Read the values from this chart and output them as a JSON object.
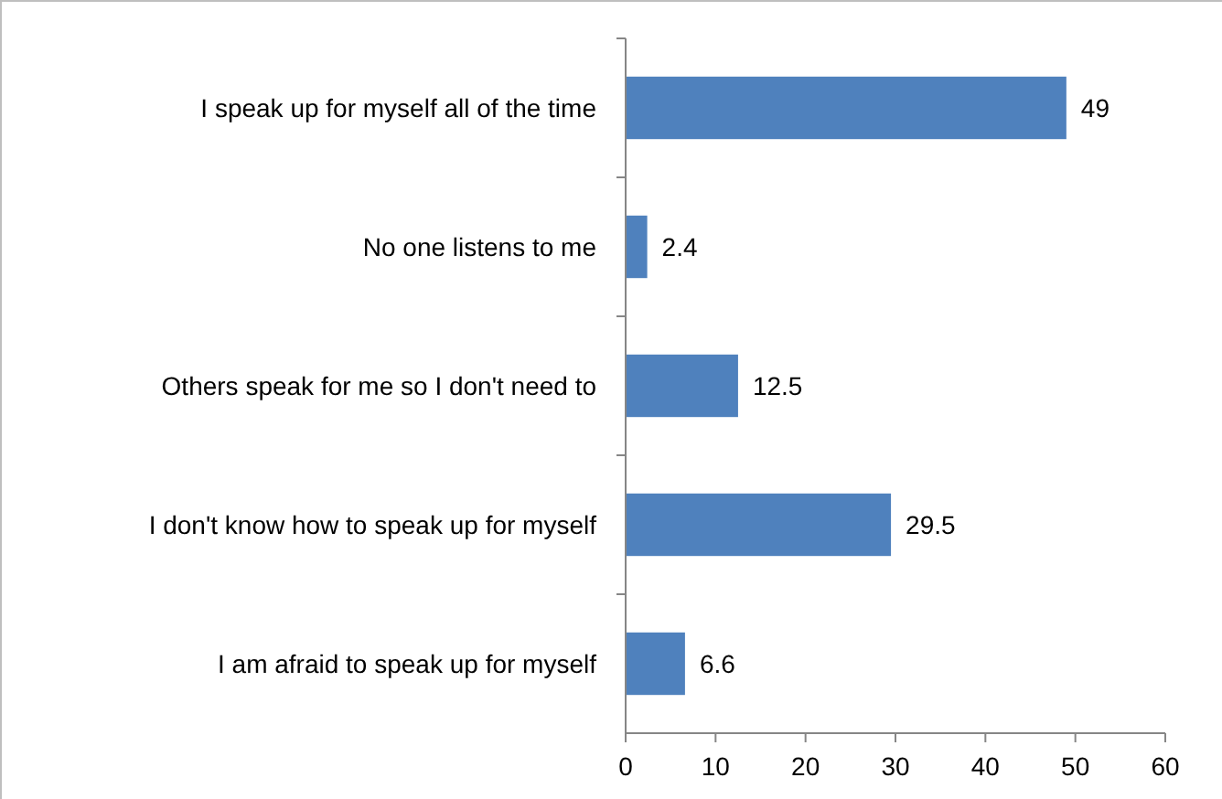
{
  "chart_data": {
    "type": "bar",
    "orientation": "horizontal",
    "categories": [
      "I speak up for myself all of the time",
      "No one listens to me",
      "Others speak for me so I don't need to",
      "I don't know how to speak up for myself",
      "I am afraid to speak up for myself"
    ],
    "values": [
      49,
      2.4,
      12.5,
      29.5,
      6.6
    ],
    "color": "#4f81bd",
    "xlim": [
      0,
      60
    ],
    "xticks": [
      0,
      10,
      20,
      30,
      40,
      50,
      60
    ],
    "data_labels": true
  }
}
